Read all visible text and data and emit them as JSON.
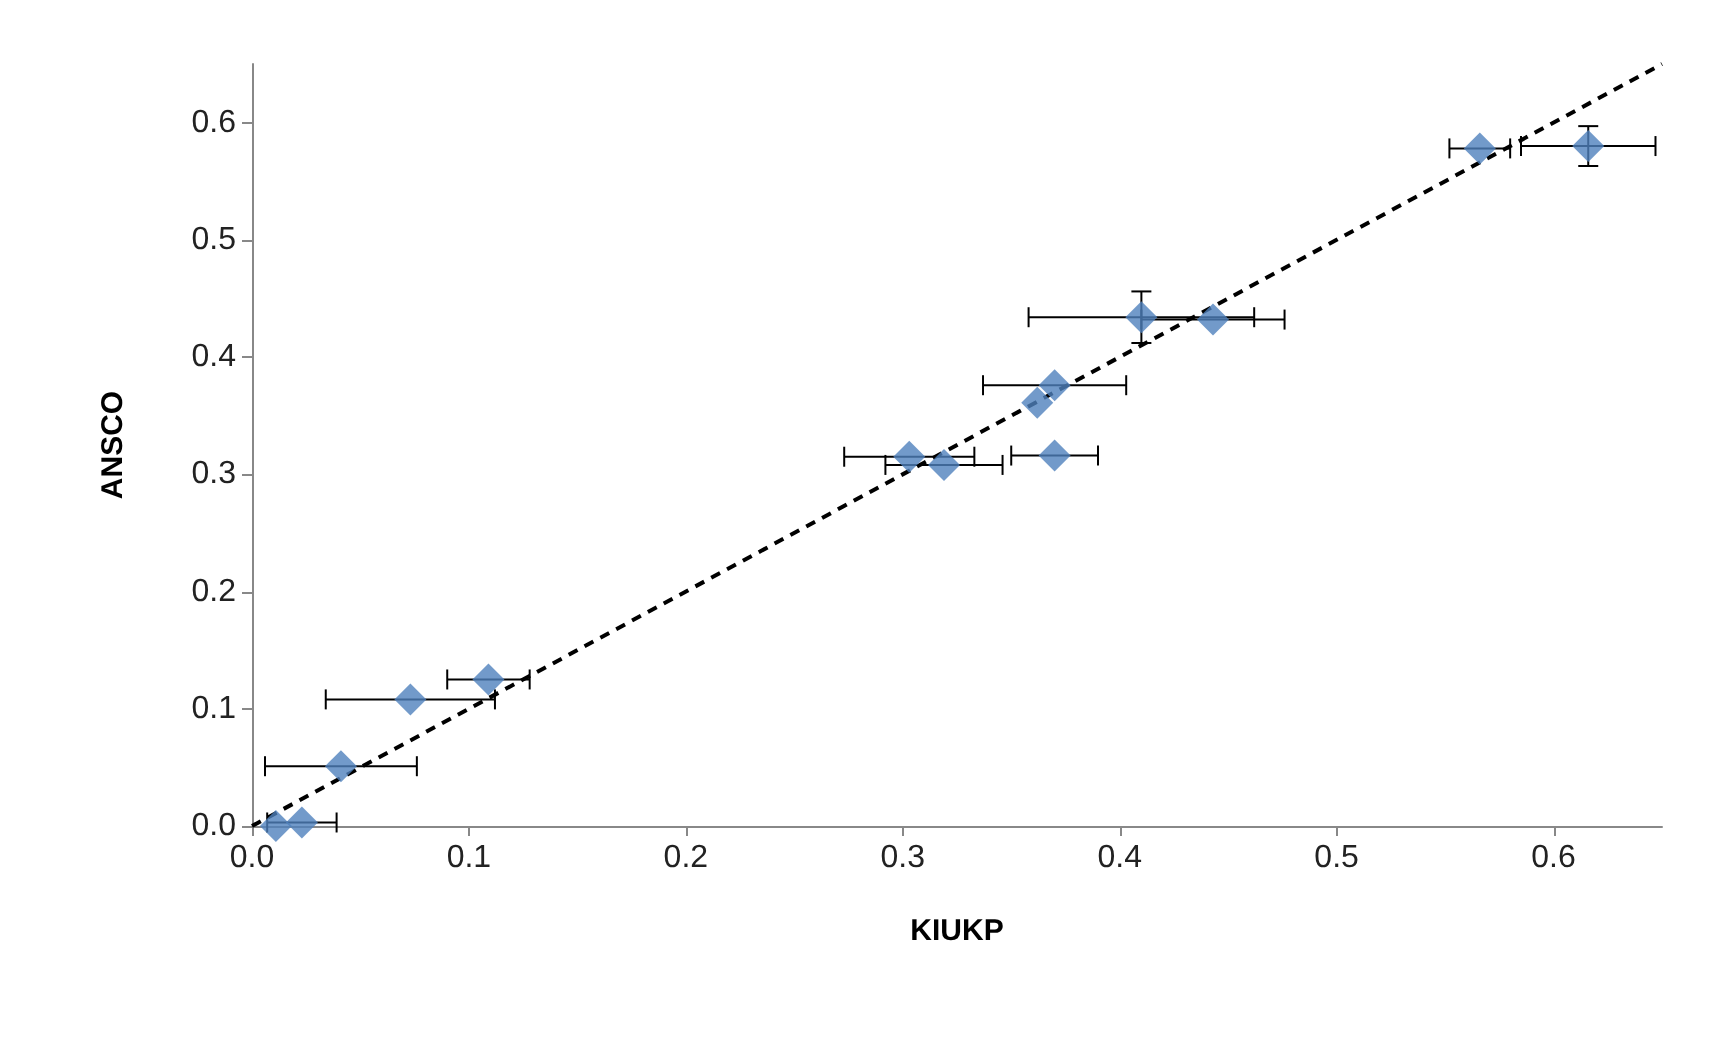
{
  "chart_data": {
    "type": "scatter",
    "xlabel": "KIUKP",
    "ylabel": "ANSCO",
    "xlim": [
      0,
      0.65
    ],
    "xticks": [
      {
        "value": 0,
        "label": "0.0"
      },
      0.1,
      0.2,
      0.3,
      0.4,
      0.5,
      0.6
    ],
    "ylim": [
      0,
      0.65
    ],
    "yticks": [
      {
        "value": 0,
        "label": "0.0"
      },
      0.1,
      0.2,
      0.3,
      0.4,
      0.5,
      0.6
    ],
    "grid": false,
    "marker": "diamond",
    "series": [
      {
        "color": "#4f81bd",
        "x": [
          0.011,
          0.023,
          0.041,
          0.073,
          0.109,
          0.303,
          0.319,
          0.362,
          0.37,
          0.37,
          0.41,
          0.443,
          0.566,
          0.616
        ],
        "values": [
          0,
          0.003,
          0.051,
          0.108,
          0.125,
          0.315,
          0.308,
          0.361,
          0.376,
          0.316,
          0.434,
          0.432,
          0.578,
          0.58
        ],
        "xerrors": [
          null,
          0.016,
          0.035,
          0.039,
          0.019,
          0.03,
          0.027,
          null,
          0.033,
          0.02,
          0.052,
          0.033,
          0.014,
          0.031
        ],
        "errors": [
          null,
          null,
          null,
          null,
          null,
          null,
          null,
          null,
          null,
          null,
          0.022,
          null,
          null,
          0.017
        ]
      },
      {
        "type": "line",
        "color": "#000000",
        "line_style": "dashed",
        "marker": "none",
        "x": [
          0,
          0.65
        ],
        "values": [
          0,
          0.65
        ]
      }
    ]
  }
}
